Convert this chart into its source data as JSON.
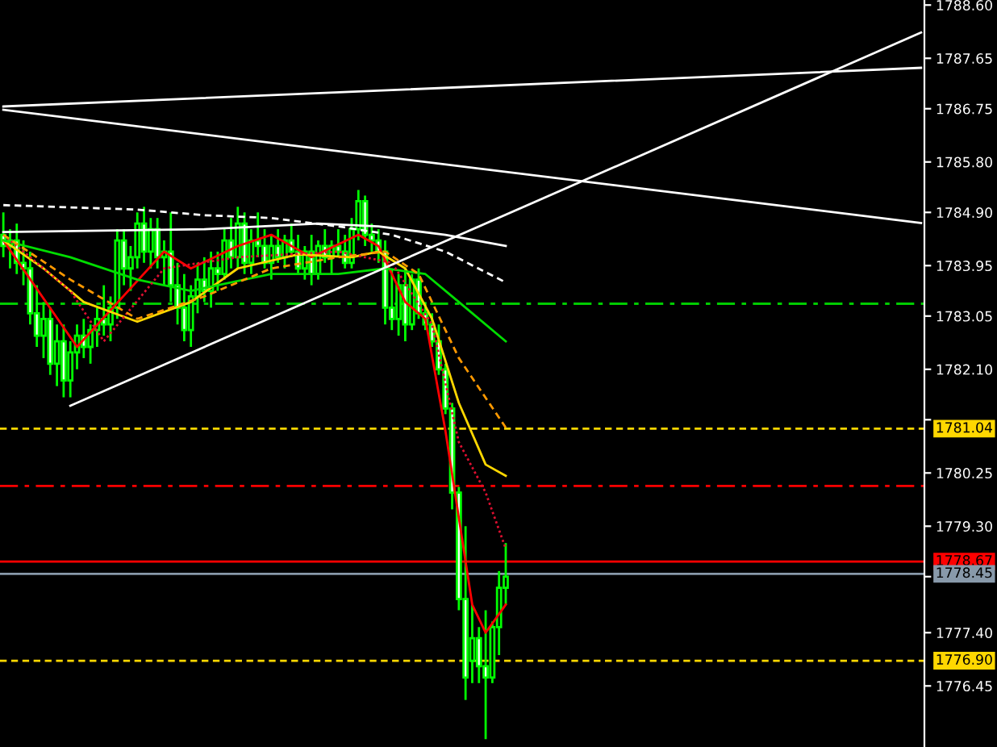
{
  "chart_data": {
    "type": "candlestick",
    "color": "#00ff00",
    "categories": [
      null,
      null,
      null,
      null,
      null,
      null,
      null,
      null,
      null,
      null,
      null,
      null,
      null,
      null,
      null,
      null,
      null,
      null,
      null,
      null,
      null,
      null,
      null,
      null,
      null,
      null,
      null,
      null,
      null,
      null,
      null,
      null,
      null,
      null,
      null,
      null,
      null,
      null,
      null,
      null,
      null,
      null,
      null,
      null,
      null,
      null,
      null,
      null,
      null,
      null,
      null,
      null,
      null,
      null,
      null,
      null,
      null,
      null,
      null,
      null,
      null,
      null,
      null,
      null,
      null,
      null,
      null,
      null,
      null,
      null,
      null,
      null,
      null,
      null,
      null,
      null,
      null,
      null,
      null,
      null,
      null,
      null,
      null,
      null,
      null,
      null,
      null,
      null,
      null,
      null,
      null,
      null,
      null,
      null,
      null,
      null,
      null,
      null,
      null,
      null,
      null,
      null,
      null,
      null,
      null,
      null,
      null,
      null,
      null,
      null,
      null,
      null,
      null,
      null,
      null,
      null,
      null,
      null,
      null,
      null,
      null,
      null,
      null,
      null,
      null,
      null,
      null,
      null,
      null,
      null,
      null,
      null,
      null,
      null,
      null,
      null,
      null,
      null
    ],
    "ohlc": [
      [
        1784.5,
        1784.9,
        1784.1,
        1784.3
      ],
      [
        1784.3,
        1784.6,
        1783.9,
        1784.4
      ],
      [
        1784.4,
        1784.7,
        1783.8,
        1784.0
      ],
      [
        1784.0,
        1784.4,
        1783.6,
        1783.9
      ],
      [
        1783.9,
        1784.2,
        1782.9,
        1783.1
      ],
      [
        1783.1,
        1783.6,
        1782.5,
        1782.7
      ],
      [
        1782.7,
        1783.3,
        1782.3,
        1783.0
      ],
      [
        1783.0,
        1783.2,
        1782.0,
        1782.2
      ],
      [
        1782.2,
        1782.9,
        1781.8,
        1782.6
      ],
      [
        1782.6,
        1782.9,
        1781.6,
        1781.9
      ],
      [
        1781.9,
        1782.6,
        1781.6,
        1782.4
      ],
      [
        1782.4,
        1782.9,
        1782.1,
        1782.7
      ],
      [
        1782.7,
        1783.0,
        1782.3,
        1782.5
      ],
      [
        1782.5,
        1782.9,
        1782.2,
        1782.8
      ],
      [
        1782.8,
        1783.2,
        1782.5,
        1783.0
      ],
      [
        1783.0,
        1783.6,
        1782.7,
        1782.9
      ],
      [
        1782.9,
        1783.4,
        1782.6,
        1783.2
      ],
      [
        1783.2,
        1784.6,
        1783.0,
        1784.4
      ],
      [
        1784.4,
        1784.6,
        1783.6,
        1783.9
      ],
      [
        1783.9,
        1784.3,
        1783.5,
        1784.1
      ],
      [
        1784.1,
        1784.9,
        1783.9,
        1784.7
      ],
      [
        1784.7,
        1785.0,
        1784.0,
        1784.2
      ],
      [
        1784.2,
        1784.8,
        1783.9,
        1784.6
      ],
      [
        1784.6,
        1784.8,
        1783.9,
        1784.1
      ],
      [
        1784.1,
        1784.4,
        1783.6,
        1784.2
      ],
      [
        1784.2,
        1784.9,
        1783.3,
        1783.6
      ],
      [
        1783.6,
        1784.0,
        1782.9,
        1783.2
      ],
      [
        1783.2,
        1783.8,
        1782.6,
        1782.8
      ],
      [
        1782.8,
        1783.6,
        1782.5,
        1783.4
      ],
      [
        1783.4,
        1784.0,
        1783.1,
        1783.7
      ],
      [
        1783.7,
        1784.1,
        1783.3,
        1783.5
      ],
      [
        1783.5,
        1784.2,
        1783.2,
        1783.9
      ],
      [
        1783.9,
        1784.2,
        1783.5,
        1783.8
      ],
      [
        1783.8,
        1784.6,
        1783.7,
        1784.4
      ],
      [
        1784.4,
        1784.8,
        1783.9,
        1784.1
      ],
      [
        1784.1,
        1785.0,
        1783.9,
        1784.7
      ],
      [
        1784.7,
        1784.9,
        1783.8,
        1784.0
      ],
      [
        1784.0,
        1784.6,
        1783.8,
        1784.4
      ],
      [
        1784.4,
        1784.9,
        1784.1,
        1784.3
      ],
      [
        1784.3,
        1784.6,
        1783.9,
        1784.0
      ],
      [
        1784.0,
        1784.5,
        1783.7,
        1784.3
      ],
      [
        1784.3,
        1784.6,
        1784.0,
        1784.1
      ],
      [
        1784.1,
        1784.5,
        1783.9,
        1784.4
      ],
      [
        1784.4,
        1784.7,
        1784.1,
        1784.2
      ],
      [
        1784.2,
        1784.5,
        1783.8,
        1783.9
      ],
      [
        1783.9,
        1784.3,
        1783.7,
        1784.2
      ],
      [
        1784.2,
        1784.5,
        1783.6,
        1783.8
      ],
      [
        1783.8,
        1784.4,
        1783.7,
        1784.3
      ],
      [
        1784.3,
        1784.6,
        1784.0,
        1784.1
      ],
      [
        1784.1,
        1784.4,
        1783.8,
        1784.3
      ],
      [
        1784.3,
        1784.6,
        1784.1,
        1784.2
      ],
      [
        1784.2,
        1784.5,
        1783.9,
        1784.0
      ],
      [
        1784.0,
        1784.8,
        1783.9,
        1784.6
      ],
      [
        1784.6,
        1785.3,
        1784.4,
        1785.1
      ],
      [
        1785.1,
        1785.2,
        1784.3,
        1784.5
      ],
      [
        1784.5,
        1784.7,
        1784.2,
        1784.4
      ],
      [
        1784.4,
        1784.6,
        1784.0,
        1784.2
      ],
      [
        1784.2,
        1784.4,
        1782.9,
        1783.2
      ],
      [
        1783.2,
        1783.9,
        1782.8,
        1783.0
      ],
      [
        1783.0,
        1783.8,
        1782.7,
        1783.6
      ],
      [
        1783.6,
        1783.9,
        1782.6,
        1782.9
      ],
      [
        1782.9,
        1783.8,
        1782.8,
        1783.7
      ],
      [
        1783.7,
        1783.9,
        1783.0,
        1783.1
      ],
      [
        1783.1,
        1783.3,
        1782.8,
        1782.9
      ],
      [
        1782.9,
        1783.1,
        1782.5,
        1782.6
      ],
      [
        1782.6,
        1782.9,
        1782.0,
        1782.1
      ],
      [
        1782.1,
        1782.2,
        1781.3,
        1781.4
      ],
      [
        1781.4,
        1781.5,
        1779.6,
        1779.9
      ],
      [
        1779.9,
        1780.0,
        1777.8,
        1778.0
      ],
      [
        1778.0,
        1779.3,
        1776.2,
        1776.6
      ],
      [
        1776.9,
        1777.9,
        1776.5,
        1777.3
      ],
      [
        1777.3,
        1777.5,
        1776.5,
        1776.8
      ],
      [
        1776.8,
        1777.8,
        1775.5,
        1776.6
      ],
      [
        1776.6,
        1777.6,
        1776.5,
        1777.5
      ],
      [
        1777.5,
        1778.5,
        1777.0,
        1778.2
      ],
      [
        1778.2,
        1779.0,
        1777.9,
        1778.4
      ],
      null,
      null,
      null,
      null,
      null,
      null,
      null,
      null,
      null,
      null,
      null,
      null,
      null,
      null,
      null,
      null,
      null,
      null,
      null,
      null,
      null,
      null,
      null,
      null,
      null,
      null,
      null,
      null,
      null,
      null,
      null,
      null,
      null,
      null,
      null,
      null,
      null,
      null,
      null,
      null,
      null,
      null,
      null,
      null,
      null,
      null,
      null,
      null,
      null,
      null,
      null,
      null,
      null,
      null,
      null,
      null,
      null,
      null,
      null,
      null,
      null,
      null
    ],
    "series": [
      {
        "type": "line",
        "color": "#ff0000",
        "line_style": "solid",
        "values": [
          1784.4,
          null,
          null,
          null,
          null,
          null,
          null,
          null,
          null,
          null,
          null,
          1782.5,
          null,
          null,
          null,
          null,
          null,
          null,
          null,
          null,
          null,
          null,
          null,
          null,
          1784.2,
          null,
          null,
          null,
          1783.9,
          null,
          null,
          null,
          null,
          null,
          null,
          1784.3,
          null,
          null,
          null,
          null,
          1784.5,
          null,
          null,
          null,
          null,
          null,
          1784.1,
          null,
          null,
          null,
          null,
          null,
          null,
          1784.5,
          null,
          null,
          1784.3,
          null,
          null,
          null,
          1783.3,
          null,
          null,
          1783.0,
          null,
          null,
          1781.0,
          null,
          null,
          null,
          1777.9,
          null,
          1777.4,
          null,
          null,
          1777.9,
          null,
          null,
          null,
          null,
          null,
          null,
          null,
          null,
          null,
          null,
          null,
          null,
          null,
          null,
          null,
          null,
          null,
          null,
          null,
          null,
          null,
          null,
          null,
          null,
          null,
          null,
          null,
          null,
          null,
          null,
          null,
          null,
          null,
          null,
          null,
          null,
          null,
          null,
          null,
          null,
          null,
          null,
          null,
          null,
          null,
          null,
          null,
          null,
          null,
          null,
          null,
          null,
          null,
          null,
          null,
          null,
          null,
          null,
          null,
          null,
          null,
          null
        ]
      },
      {
        "type": "line",
        "color": "#ffd700",
        "line_style": "solid",
        "values": [
          1784.4,
          null,
          null,
          null,
          null,
          null,
          1783.9,
          null,
          null,
          null,
          null,
          null,
          1783.3,
          null,
          null,
          null,
          null,
          null,
          null,
          null,
          1782.95,
          null,
          null,
          null,
          null,
          null,
          null,
          null,
          1783.3,
          null,
          null,
          null,
          null,
          null,
          null,
          1783.9,
          null,
          null,
          null,
          null,
          null,
          null,
          null,
          null,
          1784.15,
          null,
          null,
          null,
          null,
          null,
          null,
          null,
          1784.1,
          null,
          null,
          null,
          1784.2,
          null,
          null,
          null,
          1783.9,
          null,
          null,
          null,
          1783.0,
          null,
          null,
          null,
          1781.5,
          null,
          null,
          null,
          1780.4,
          null,
          null,
          1780.2,
          null,
          null,
          null,
          null,
          null,
          null,
          null,
          null,
          null,
          null,
          null,
          null,
          null,
          null,
          null,
          null,
          null,
          null,
          null,
          null,
          null,
          null,
          null,
          null,
          null,
          null,
          null,
          null,
          null,
          null,
          null,
          null,
          null,
          null,
          null,
          null,
          null,
          null,
          null,
          null,
          null,
          null,
          null,
          null,
          null,
          null,
          null,
          null,
          null,
          null,
          null,
          null,
          null,
          null,
          null,
          null,
          null,
          null,
          null,
          null,
          null,
          null
        ]
      },
      {
        "type": "line",
        "color": "#00dd00",
        "line_style": "solid",
        "values": [
          1784.4,
          null,
          null,
          null,
          null,
          null,
          null,
          null,
          null,
          null,
          1784.1,
          null,
          null,
          null,
          null,
          null,
          null,
          null,
          null,
          null,
          1783.7,
          null,
          null,
          null,
          null,
          null,
          null,
          null,
          1783.5,
          null,
          null,
          null,
          null,
          null,
          null,
          null,
          null,
          null,
          null,
          null,
          1783.8,
          null,
          null,
          null,
          null,
          null,
          null,
          null,
          null,
          null,
          1783.8,
          null,
          null,
          null,
          null,
          null,
          null,
          1783.9,
          null,
          null,
          null,
          null,
          null,
          1783.8,
          null,
          null,
          null,
          null,
          1783.3,
          null,
          null,
          null,
          null,
          null,
          null,
          1782.6,
          null,
          null,
          null,
          null,
          null,
          null,
          null,
          null,
          null,
          null,
          null,
          null,
          null,
          null,
          null,
          null,
          null,
          null,
          null,
          null,
          null,
          null,
          null,
          null,
          null,
          null,
          null,
          null,
          null,
          null,
          null,
          null,
          null,
          null,
          null,
          null,
          null,
          null,
          null,
          null,
          null,
          null,
          null,
          null,
          null,
          null,
          null,
          null,
          null,
          null,
          null,
          null,
          null,
          null,
          null,
          null,
          null,
          null,
          null,
          null,
          null,
          null
        ]
      },
      {
        "type": "line",
        "color": "#dd1030",
        "line_style": "dotted",
        "values": [
          1784.5,
          null,
          null,
          null,
          null,
          null,
          null,
          null,
          null,
          null,
          1783.5,
          null,
          null,
          null,
          null,
          1782.6,
          null,
          null,
          null,
          null,
          null,
          null,
          null,
          null,
          1783.9,
          null,
          null,
          null,
          null,
          null,
          null,
          null,
          null,
          null,
          null,
          1784.1,
          null,
          null,
          null,
          null,
          null,
          null,
          null,
          null,
          null,
          null,
          null,
          null,
          null,
          null,
          1784.2,
          null,
          null,
          null,
          null,
          null,
          null,
          null,
          1784.0,
          null,
          null,
          null,
          null,
          null,
          1782.9,
          null,
          null,
          null,
          1780.8,
          null,
          null,
          null,
          1779.9,
          null,
          null,
          1778.9,
          null,
          null,
          null,
          null,
          null,
          null,
          null,
          null,
          null,
          null,
          null,
          null,
          null,
          null,
          null,
          null,
          null,
          null,
          null,
          null,
          null,
          null,
          null,
          null,
          null,
          null,
          null,
          null,
          null,
          null,
          null,
          null,
          null,
          null,
          null,
          null,
          null,
          null,
          null,
          null,
          null,
          null,
          null,
          null,
          null,
          null,
          null,
          null,
          null,
          null,
          null,
          null,
          null,
          null,
          null,
          null,
          null,
          null,
          null,
          null,
          null,
          null
        ]
      },
      {
        "type": "line",
        "color": "#ff9900",
        "line_style": "dashed",
        "values": [
          1784.5,
          null,
          null,
          null,
          null,
          null,
          null,
          null,
          null,
          null,
          1783.7,
          null,
          null,
          null,
          null,
          null,
          null,
          null,
          null,
          null,
          1783.0,
          null,
          null,
          null,
          null,
          null,
          null,
          null,
          null,
          null,
          1783.4,
          null,
          null,
          null,
          null,
          null,
          null,
          null,
          null,
          null,
          1783.9,
          null,
          null,
          null,
          null,
          null,
          null,
          null,
          null,
          null,
          1784.1,
          null,
          null,
          null,
          null,
          null,
          null,
          1784.2,
          null,
          null,
          null,
          null,
          1783.8,
          null,
          null,
          null,
          null,
          null,
          1782.3,
          null,
          null,
          null,
          null,
          null,
          null,
          1781.06,
          null,
          null,
          null,
          null,
          null,
          null,
          null,
          null,
          null,
          null,
          null,
          null,
          null,
          null,
          null,
          null,
          null,
          null,
          null,
          null,
          null,
          null,
          null,
          null,
          null,
          null,
          null,
          null,
          null,
          null,
          null,
          null,
          null,
          null,
          null,
          null,
          null,
          null,
          null,
          null,
          null,
          null,
          null,
          null,
          null,
          null,
          null,
          null,
          null,
          null,
          null,
          null,
          null,
          null,
          null,
          null,
          null,
          null,
          null,
          null,
          null,
          null
        ]
      },
      {
        "type": "line",
        "color": "#ffffff",
        "line_style": "dashed",
        "values": [
          1785.03,
          null,
          null,
          null,
          null,
          null,
          null,
          null,
          null,
          null,
          null,
          null,
          null,
          null,
          null,
          null,
          null,
          null,
          null,
          null,
          1784.95,
          null,
          null,
          null,
          null,
          null,
          null,
          null,
          null,
          null,
          1784.85,
          null,
          null,
          null,
          null,
          null,
          null,
          null,
          null,
          null,
          1784.8,
          null,
          null,
          null,
          null,
          null,
          null,
          null,
          null,
          null,
          1784.65,
          null,
          null,
          null,
          null,
          null,
          null,
          null,
          1784.5,
          null,
          null,
          null,
          null,
          null,
          null,
          null,
          1784.2,
          null,
          null,
          null,
          null,
          null,
          null,
          null,
          null,
          1783.65,
          null,
          null,
          null,
          null,
          null,
          null,
          null,
          null,
          null,
          null,
          null,
          null,
          null,
          null,
          null,
          null,
          null,
          null,
          null,
          null,
          null,
          null,
          null,
          null,
          null,
          null,
          null,
          null,
          null,
          null,
          null,
          null,
          null,
          null,
          null,
          null,
          null,
          null,
          null,
          null,
          null,
          null,
          null,
          null,
          null,
          null,
          null,
          null,
          null,
          null,
          null,
          null,
          null,
          null,
          null,
          null,
          null,
          null,
          null,
          null,
          null,
          null
        ]
      },
      {
        "type": "line",
        "color": "#ffffff",
        "line_style": "solid",
        "values": [
          1784.55,
          null,
          null,
          null,
          null,
          null,
          null,
          null,
          null,
          null,
          null,
          null,
          null,
          null,
          null,
          null,
          null,
          null,
          null,
          null,
          null,
          null,
          null,
          null,
          null,
          null,
          null,
          null,
          null,
          null,
          1784.6,
          null,
          null,
          null,
          null,
          null,
          null,
          null,
          null,
          null,
          null,
          null,
          null,
          null,
          null,
          null,
          null,
          1784.7,
          null,
          null,
          null,
          null,
          null,
          null,
          null,
          null,
          1784.65,
          null,
          null,
          null,
          null,
          null,
          null,
          null,
          null,
          null,
          1784.5,
          null,
          null,
          null,
          null,
          null,
          null,
          null,
          null,
          1784.3,
          null,
          null,
          null,
          null,
          null,
          null,
          null,
          null,
          null,
          null,
          null,
          null,
          null,
          null,
          null,
          null,
          null,
          null,
          null,
          null,
          null,
          null,
          null,
          null,
          null,
          null,
          null,
          null,
          null,
          null,
          null,
          null,
          null,
          null,
          null,
          null,
          null,
          null,
          null,
          null,
          null,
          null,
          null,
          null,
          null,
          null,
          null,
          null,
          null,
          null,
          null,
          null,
          null,
          null,
          null,
          null,
          null,
          null,
          null,
          null,
          null,
          null
        ]
      },
      {
        "type": "line",
        "color": "#ffffff",
        "line_style": "solid",
        "values": [
          null,
          null,
          null,
          null,
          null,
          null,
          null,
          null,
          null,
          null,
          1781.45,
          null,
          null,
          null,
          null,
          null,
          null,
          null,
          null,
          null,
          null,
          null,
          null,
          null,
          null,
          null,
          null,
          null,
          null,
          null,
          null,
          null,
          null,
          null,
          null,
          null,
          null,
          null,
          null,
          null,
          null,
          null,
          null,
          null,
          null,
          null,
          null,
          null,
          null,
          null,
          null,
          null,
          null,
          null,
          null,
          null,
          null,
          null,
          null,
          null,
          null,
          null,
          null,
          null,
          null,
          null,
          null,
          null,
          null,
          null,
          null,
          null,
          null,
          null,
          null,
          null,
          null,
          null,
          null,
          null,
          null,
          null,
          null,
          null,
          null,
          null,
          null,
          null,
          null,
          null,
          null,
          null,
          null,
          null,
          null,
          null,
          null,
          null,
          null,
          null,
          null,
          null,
          null,
          null,
          null,
          null,
          null,
          null,
          null,
          null,
          null,
          null,
          null,
          null,
          null,
          null,
          null,
          null,
          null,
          null,
          null,
          null,
          null,
          null,
          null,
          null,
          null,
          null,
          null,
          null,
          null,
          null,
          null,
          null,
          null,
          null,
          null,
          1788.11
        ]
      },
      {
        "type": "line",
        "color": "#ffffff",
        "line_style": "solid",
        "values": [
          1786.79,
          null,
          null,
          null,
          null,
          null,
          null,
          null,
          null,
          null,
          null,
          null,
          null,
          null,
          null,
          null,
          null,
          null,
          null,
          null,
          null,
          null,
          null,
          null,
          null,
          null,
          null,
          null,
          null,
          null,
          null,
          null,
          null,
          null,
          null,
          null,
          null,
          null,
          null,
          null,
          null,
          null,
          null,
          null,
          null,
          null,
          null,
          null,
          null,
          null,
          null,
          null,
          null,
          null,
          null,
          null,
          null,
          null,
          null,
          null,
          null,
          null,
          null,
          null,
          null,
          null,
          null,
          null,
          null,
          null,
          null,
          null,
          null,
          null,
          null,
          null,
          null,
          null,
          null,
          null,
          null,
          null,
          null,
          null,
          null,
          null,
          null,
          null,
          null,
          null,
          null,
          null,
          null,
          null,
          null,
          null,
          null,
          null,
          null,
          null,
          null,
          null,
          null,
          null,
          null,
          null,
          null,
          null,
          null,
          null,
          null,
          null,
          null,
          null,
          null,
          null,
          null,
          null,
          null,
          null,
          null,
          null,
          null,
          null,
          null,
          null,
          null,
          null,
          null,
          null,
          null,
          null,
          null,
          null,
          null,
          null,
          null,
          1787.48
        ]
      },
      {
        "type": "line",
        "color": "#ffffff",
        "line_style": "solid",
        "values": [
          1786.73,
          null,
          null,
          null,
          null,
          null,
          null,
          null,
          null,
          null,
          null,
          null,
          null,
          null,
          null,
          null,
          null,
          null,
          null,
          null,
          null,
          null,
          null,
          null,
          null,
          null,
          null,
          null,
          null,
          null,
          null,
          null,
          null,
          null,
          null,
          null,
          null,
          null,
          null,
          null,
          null,
          null,
          null,
          null,
          null,
          null,
          null,
          null,
          null,
          null,
          null,
          null,
          null,
          null,
          null,
          null,
          null,
          null,
          null,
          null,
          null,
          null,
          null,
          null,
          null,
          null,
          null,
          null,
          null,
          null,
          null,
          null,
          null,
          null,
          null,
          null,
          null,
          null,
          null,
          null,
          null,
          null,
          null,
          null,
          null,
          null,
          null,
          null,
          null,
          null,
          null,
          null,
          null,
          null,
          null,
          null,
          null,
          null,
          null,
          null,
          null,
          null,
          null,
          null,
          null,
          null,
          null,
          null,
          null,
          null,
          null,
          null,
          null,
          null,
          null,
          null,
          null,
          null,
          null,
          null,
          null,
          null,
          null,
          null,
          null,
          null,
          null,
          null,
          null,
          null,
          null,
          null,
          null,
          null,
          null,
          null,
          null,
          1784.71
        ]
      }
    ],
    "ref_lines": [
      {
        "axis": "y",
        "value": 1783.27,
        "color": "#00cc00",
        "line_style": "dashdot"
      },
      {
        "axis": "y",
        "value": 1781.04,
        "label": "1781.04",
        "color": "#ffd700",
        "line_style": "dashed"
      },
      {
        "axis": "y",
        "value": 1780.02,
        "color": "#ff0000",
        "line_style": "dashdot"
      },
      {
        "axis": "y",
        "value": 1778.67,
        "label": "1778.67",
        "color": "#ff0000",
        "line_style": "solid"
      },
      {
        "axis": "y",
        "value": 1778.45,
        "label": "1778.45",
        "color": "#8899aa",
        "line_style": "solid"
      },
      {
        "axis": "y",
        "value": 1776.9,
        "label": "1776.90",
        "color": "#ffd700",
        "line_style": "dashed"
      }
    ],
    "ylim": [
      1775.36,
      1788.69
    ],
    "yticks": [
      {
        "value": 1788.6,
        "label": "1788.60"
      },
      1787.65,
      1786.75,
      {
        "value": 1785.8,
        "label": "1785.80"
      },
      {
        "value": 1784.9,
        "label": "1784.90"
      },
      1783.95,
      1783.05,
      {
        "value": 1782.1,
        "label": "1782.10"
      },
      {
        "value": 1781.2,
        "label": null
      },
      1780.25,
      {
        "value": 1779.3,
        "label": "1779.30"
      },
      {
        "value": 1778.4,
        "label": null
      },
      {
        "value": 1777.4,
        "label": "1777.40"
      },
      1776.45
    ],
    "tick_labels": "y",
    "grid": false,
    "legend": false
  }
}
